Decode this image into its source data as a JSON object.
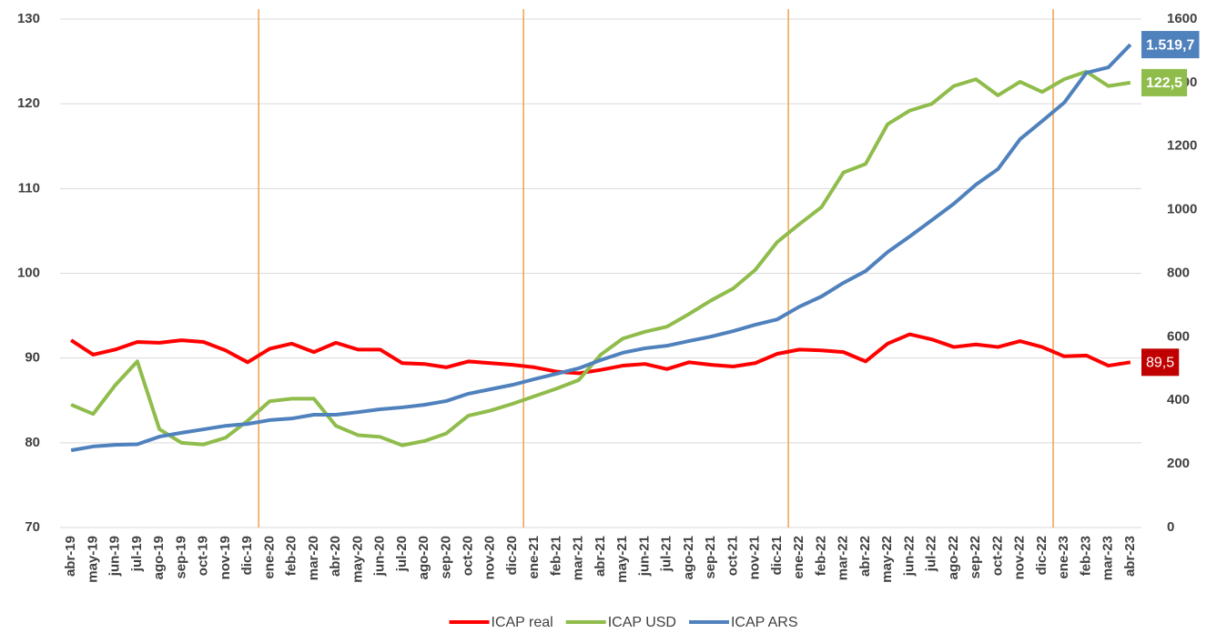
{
  "chart_data": {
    "type": "line",
    "categories": [
      "abr-19",
      "may-19",
      "jun-19",
      "jul-19",
      "ago-19",
      "sep-19",
      "oct-19",
      "nov-19",
      "dic-19",
      "ene-20",
      "feb-20",
      "mar-20",
      "abr-20",
      "may-20",
      "jun-20",
      "jul-20",
      "ago-20",
      "sep-20",
      "oct-20",
      "nov-20",
      "dic-20",
      "ene-21",
      "feb-21",
      "mar-21",
      "abr-21",
      "may-21",
      "jun-21",
      "jul-21",
      "ago-21",
      "sep-21",
      "oct-21",
      "nov-21",
      "dic-21",
      "ene-22",
      "feb-22",
      "mar-22",
      "abr-22",
      "may-22",
      "jun-22",
      "jul-22",
      "ago-22",
      "sep-22",
      "oct-22",
      "nov-22",
      "dic-22",
      "ene-23",
      "feb-23",
      "mar-23",
      "abr-23"
    ],
    "series": [
      {
        "name": "ICAP real",
        "color": "#ff0000",
        "label_color": "#c00000",
        "axis": "y",
        "values": [
          92.1,
          90.4,
          91.0,
          91.9,
          91.8,
          92.1,
          91.9,
          90.9,
          89.5,
          91.1,
          91.7,
          90.7,
          91.8,
          91.0,
          91.0,
          89.4,
          89.3,
          88.9,
          89.6,
          89.4,
          89.2,
          88.9,
          88.4,
          88.2,
          88.6,
          89.1,
          89.3,
          88.7,
          89.5,
          89.2,
          89.0,
          89.4,
          90.5,
          91.0,
          90.9,
          90.7,
          89.6,
          91.7,
          92.8,
          92.2,
          91.3,
          91.6,
          91.3,
          92.0,
          91.3,
          90.2,
          90.3,
          89.1,
          89.5
        ],
        "end_label": "89,5"
      },
      {
        "name": "ICAP USD",
        "color": "#8fbc4b",
        "label_color": "#8fbc4b",
        "axis": "y",
        "values": [
          84.5,
          83.4,
          86.8,
          89.6,
          81.6,
          80.0,
          79.8,
          80.6,
          82.6,
          84.9,
          85.2,
          85.2,
          82.0,
          80.9,
          80.7,
          79.7,
          80.2,
          81.1,
          83.2,
          83.8,
          84.6,
          85.5,
          86.4,
          87.4,
          90.4,
          92.3,
          93.1,
          93.7,
          95.2,
          96.8,
          98.2,
          100.4,
          103.7,
          105.8,
          107.8,
          111.9,
          112.9,
          117.6,
          119.2,
          120.0,
          122.1,
          122.9,
          121.0,
          122.6,
          121.4,
          122.9,
          123.8,
          122.1,
          122.5
        ],
        "end_label": "122,5"
      },
      {
        "name": "ICAP ARS",
        "color": "#4f81bd",
        "label_color": "#4f81bd",
        "axis": "y2",
        "values": [
          243,
          255,
          260,
          262,
          286,
          298,
          309,
          320,
          326,
          338,
          343,
          355,
          355,
          363,
          372,
          378,
          386,
          398,
          421,
          435,
          449,
          467,
          484,
          501,
          527,
          550,
          564,
          572,
          587,
          601,
          618,
          638,
          655,
          695,
          727,
          770,
          807,
          867,
          916,
          967,
          1019,
          1079,
          1128,
          1222,
          1279,
          1337,
          1431,
          1448,
          1519.7
        ],
        "end_label": "1.519,7"
      }
    ],
    "ylim": [
      70,
      130
    ],
    "yticks": [
      70,
      80,
      90,
      100,
      110,
      120,
      130
    ],
    "y2lim": [
      0,
      1600
    ],
    "y2ticks": [
      0,
      200,
      400,
      600,
      800,
      1000,
      1200,
      1400,
      1600
    ],
    "grid": true,
    "legend": "bottom",
    "separator_before": [
      "ene-20",
      "ene-21",
      "ene-22",
      "ene-23"
    ],
    "separator_color": "#f0a050"
  }
}
